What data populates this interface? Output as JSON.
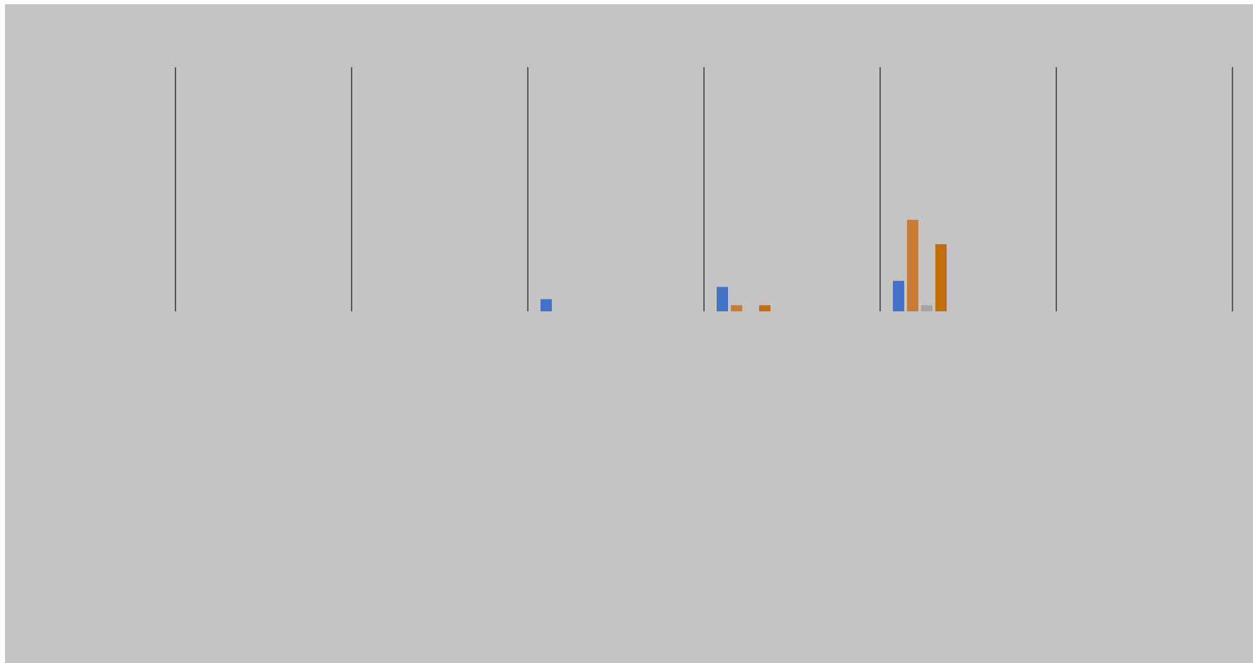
{
  "chart_data": {
    "type": "bar",
    "title": "",
    "xlabel": "",
    "ylabel": "",
    "categories": [
      "",
      "",
      "",
      "",
      "",
      ""
    ],
    "series": [
      {
        "values": [
          0,
          0,
          0.5,
          1.0,
          1.25,
          0
        ]
      },
      {
        "values": [
          0,
          0,
          0,
          0.25,
          3.75,
          0
        ]
      },
      {
        "values": [
          0,
          0,
          0,
          0,
          0.25,
          0
        ]
      },
      {
        "values": [
          0,
          0,
          0,
          0.25,
          2.75,
          0
        ]
      }
    ],
    "ylim": [
      0,
      10
    ],
    "grid": false,
    "legend": "none",
    "colors": {
      "background": "#c4c4c4",
      "category_divider": "#595959",
      "series": [
        "#4472c4",
        "#cd7a35",
        "#a5a5a5",
        "#c36d0f"
      ]
    }
  }
}
